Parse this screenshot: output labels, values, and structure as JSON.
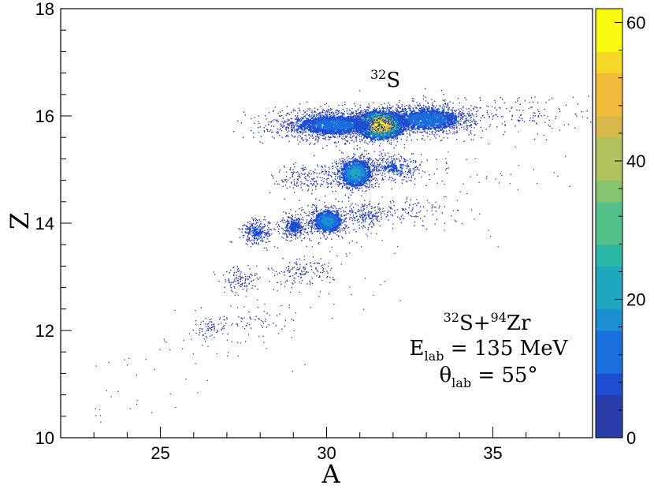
{
  "chart_data": {
    "type": "heatmap",
    "xlabel": "A",
    "ylabel": "Z",
    "xlim": [
      22,
      38
    ],
    "ylim": [
      10,
      18
    ],
    "xticks": [
      25,
      30,
      35
    ],
    "yticks": [
      10,
      12,
      14,
      16,
      18
    ],
    "colorbar": {
      "range": [
        0,
        62
      ],
      "ticks": [
        0,
        20,
        40,
        60
      ],
      "colors": [
        "#2a3da8",
        "#1f4fd0",
        "#1a6fdd",
        "#1c8ed2",
        "#1fa7c0",
        "#2cb8a6",
        "#55bf89",
        "#86c470",
        "#b2c25e",
        "#d7b84d",
        "#f2ba3a",
        "#f5d826",
        "#f9fb0e"
      ]
    },
    "clusters": [
      {
        "A": 31.6,
        "Z": 15.85,
        "sA": 0.35,
        "sZ": 0.13,
        "n": 1800,
        "peak": 62
      },
      {
        "A": 30.2,
        "Z": 15.85,
        "sA": 0.9,
        "sZ": 0.14,
        "n": 1700,
        "peak": 12
      },
      {
        "A": 33.0,
        "Z": 15.95,
        "sA": 0.7,
        "sZ": 0.14,
        "n": 1300,
        "peak": 14
      },
      {
        "A": 35.5,
        "Z": 16.05,
        "sA": 1.4,
        "sZ": 0.2,
        "n": 180,
        "peak": 4
      },
      {
        "A": 30.85,
        "Z": 14.95,
        "sA": 0.28,
        "sZ": 0.15,
        "n": 900,
        "peak": 22
      },
      {
        "A": 29.6,
        "Z": 14.85,
        "sA": 0.6,
        "sZ": 0.15,
        "n": 220,
        "peak": 5
      },
      {
        "A": 32.0,
        "Z": 15.05,
        "sA": 0.5,
        "sZ": 0.14,
        "n": 320,
        "peak": 7
      },
      {
        "A": 30.0,
        "Z": 14.05,
        "sA": 0.28,
        "sZ": 0.13,
        "n": 650,
        "peak": 18
      },
      {
        "A": 29.0,
        "Z": 13.95,
        "sA": 0.2,
        "sZ": 0.12,
        "n": 300,
        "peak": 8
      },
      {
        "A": 27.9,
        "Z": 13.85,
        "sA": 0.25,
        "sZ": 0.12,
        "n": 260,
        "peak": 7
      },
      {
        "A": 31.2,
        "Z": 14.15,
        "sA": 0.35,
        "sZ": 0.12,
        "n": 200,
        "peak": 5
      },
      {
        "A": 32.6,
        "Z": 14.25,
        "sA": 0.5,
        "sZ": 0.12,
        "n": 80,
        "peak": 3
      },
      {
        "A": 29.2,
        "Z": 13.1,
        "sA": 0.5,
        "sZ": 0.12,
        "n": 140,
        "peak": 4
      },
      {
        "A": 27.4,
        "Z": 12.95,
        "sA": 0.3,
        "sZ": 0.11,
        "n": 110,
        "peak": 4
      },
      {
        "A": 26.5,
        "Z": 12.05,
        "sA": 0.25,
        "sZ": 0.1,
        "n": 70,
        "peak": 3
      },
      {
        "A": 27.9,
        "Z": 12.15,
        "sA": 0.5,
        "sZ": 0.1,
        "n": 45,
        "peak": 2
      }
    ],
    "labels": {
      "peak": {
        "sup": "32",
        "text": "S",
        "A": 31.2,
        "Z": 16.45
      },
      "reaction": {
        "sup1": "32",
        "text1": "S+",
        "sup2": "94",
        "text2": "Zr"
      },
      "energy": {
        "text": "E",
        "sub": "lab",
        "rest": " = 135 MeV"
      },
      "angle": {
        "text": "θ",
        "sub": "lab",
        "rest": " = 55°"
      }
    }
  }
}
